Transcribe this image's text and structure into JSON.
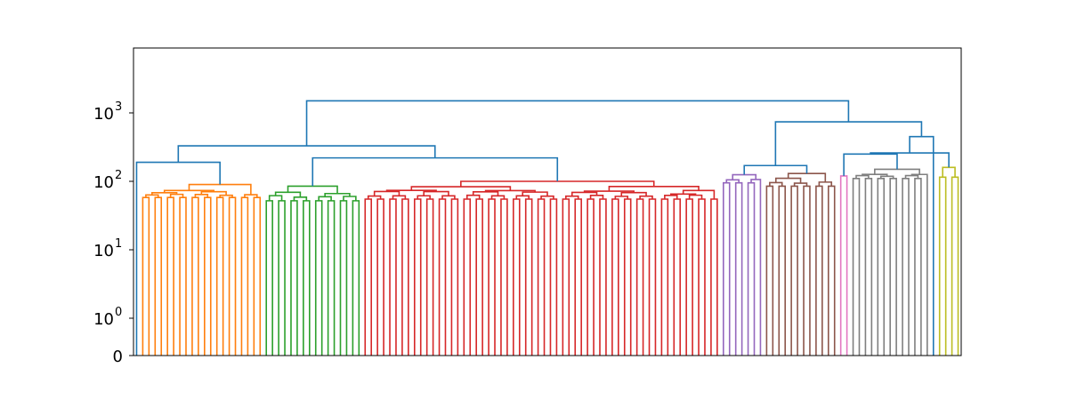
{
  "chart_data": {
    "type": "dendrogram",
    "title": "",
    "xlabel": "",
    "ylabel": "",
    "yscale": "symlog",
    "ylim": [
      0,
      4000
    ],
    "y_ticks": [
      {
        "value": 0,
        "base": "0",
        "exp": ""
      },
      {
        "value": 1,
        "base": "10",
        "exp": "0"
      },
      {
        "value": 10,
        "base": "10",
        "exp": "1"
      },
      {
        "value": 100,
        "base": "10",
        "exp": "2"
      },
      {
        "value": 1000,
        "base": "10",
        "exp": "3"
      }
    ],
    "link_color_above_threshold": "#1f77b4",
    "clusters": [
      {
        "color": "#ff7f0e",
        "leaves": 20,
        "root_height": 90,
        "min_height": 58
      },
      {
        "color": "#2ca02c",
        "leaves": 16,
        "root_height": 85,
        "min_height": 52
      },
      {
        "color": "#d62728",
        "leaves": 58,
        "root_height": 100,
        "min_height": 55
      },
      {
        "color": "#9467bd",
        "leaves": 7,
        "root_height": 125,
        "min_height": 95
      },
      {
        "color": "#8c564b",
        "leaves": 12,
        "root_height": 130,
        "min_height": 85
      },
      {
        "color": "#e377c2",
        "leaves": 2,
        "root_height": 120,
        "min_height": 115
      },
      {
        "color": "#7f7f7f",
        "leaves": 13,
        "root_height": 150,
        "min_height": 110
      },
      {
        "color": "#bcbd22",
        "leaves": 4,
        "root_height": 160,
        "min_height": 115
      }
    ],
    "top_merges": [
      {
        "left": "singleton",
        "right": "cluster:0",
        "height": 190
      },
      {
        "left": "cluster:1",
        "right": "cluster:2",
        "height": 220
      },
      {
        "left": "merge:0",
        "right": "merge:1",
        "height": 330
      },
      {
        "left": "cluster:3",
        "right": "cluster:4",
        "height": 170
      },
      {
        "left": "cluster:5",
        "right": "cluster:6",
        "height": 250
      },
      {
        "left": "merge:4",
        "right": "cluster:7",
        "height": 260
      },
      {
        "left": "merge:5",
        "right": "singleton",
        "height": 450
      },
      {
        "left": "merge:3",
        "right": "merge:6",
        "height": 740
      },
      {
        "left": "merge:2",
        "right": "merge:7",
        "height": 1500
      }
    ]
  }
}
